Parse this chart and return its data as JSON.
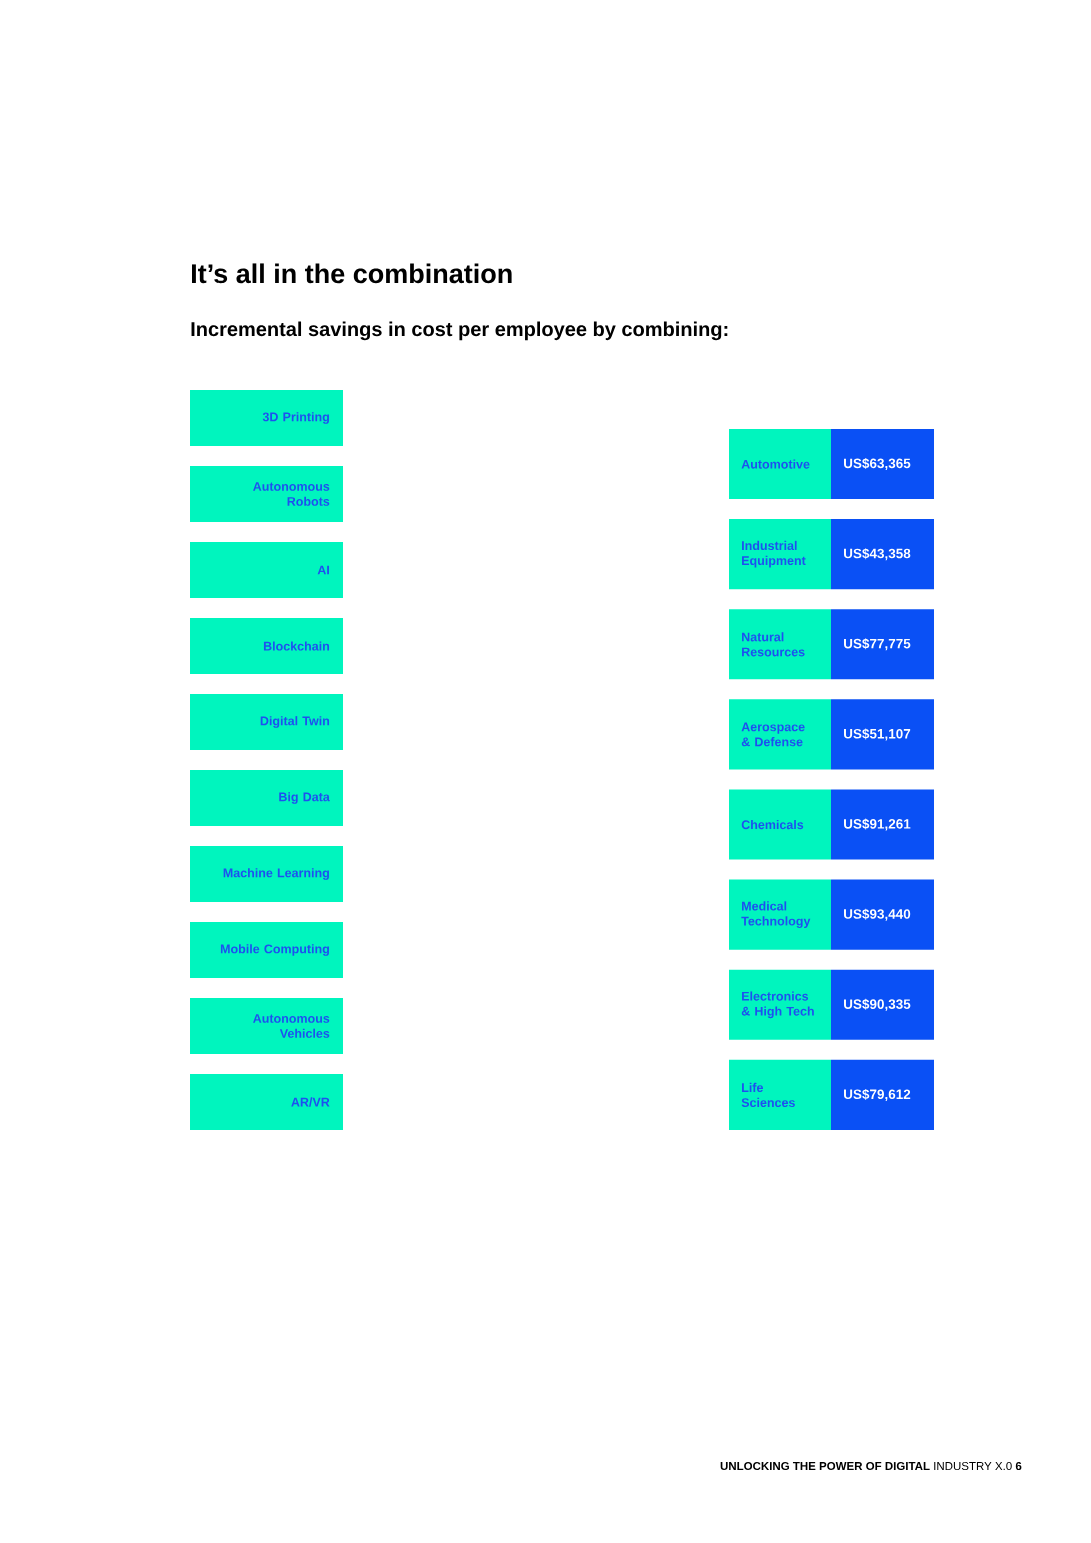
{
  "chart_data": {
    "type": "other",
    "title": "It’s all in the combination",
    "subtitle": "Incremental savings in cost per employee by combining:",
    "categories": [
      "Automotive",
      "Industrial Equipment",
      "Natural Resources",
      "Aerospace & Defense",
      "Chemicals",
      "Medical Technology",
      "Electronics & High Tech",
      "Life Sciences"
    ],
    "values": [
      63365,
      43358,
      77775,
      51107,
      91261,
      93440,
      90335,
      79612
    ],
    "value_labels": [
      "US$63,365",
      "US$43,358",
      "US$77,775",
      "US$51,107",
      "US$91,261",
      "US$93,440",
      "US$90,335",
      "US$79,612"
    ],
    "y_categories": [
      "3D Printing",
      "Autonomous Robots",
      "AI",
      "Blockchain",
      "Digital Twin",
      "Big Data",
      "Machine Learning",
      "Mobile Computing",
      "Autonomous Vehicles",
      "AR/VR"
    ],
    "annotations": [
      "**UNLOCKING THE POWER OF DIGITAL** INDUSTRY X.0 **6**"
    ]
  }
}
